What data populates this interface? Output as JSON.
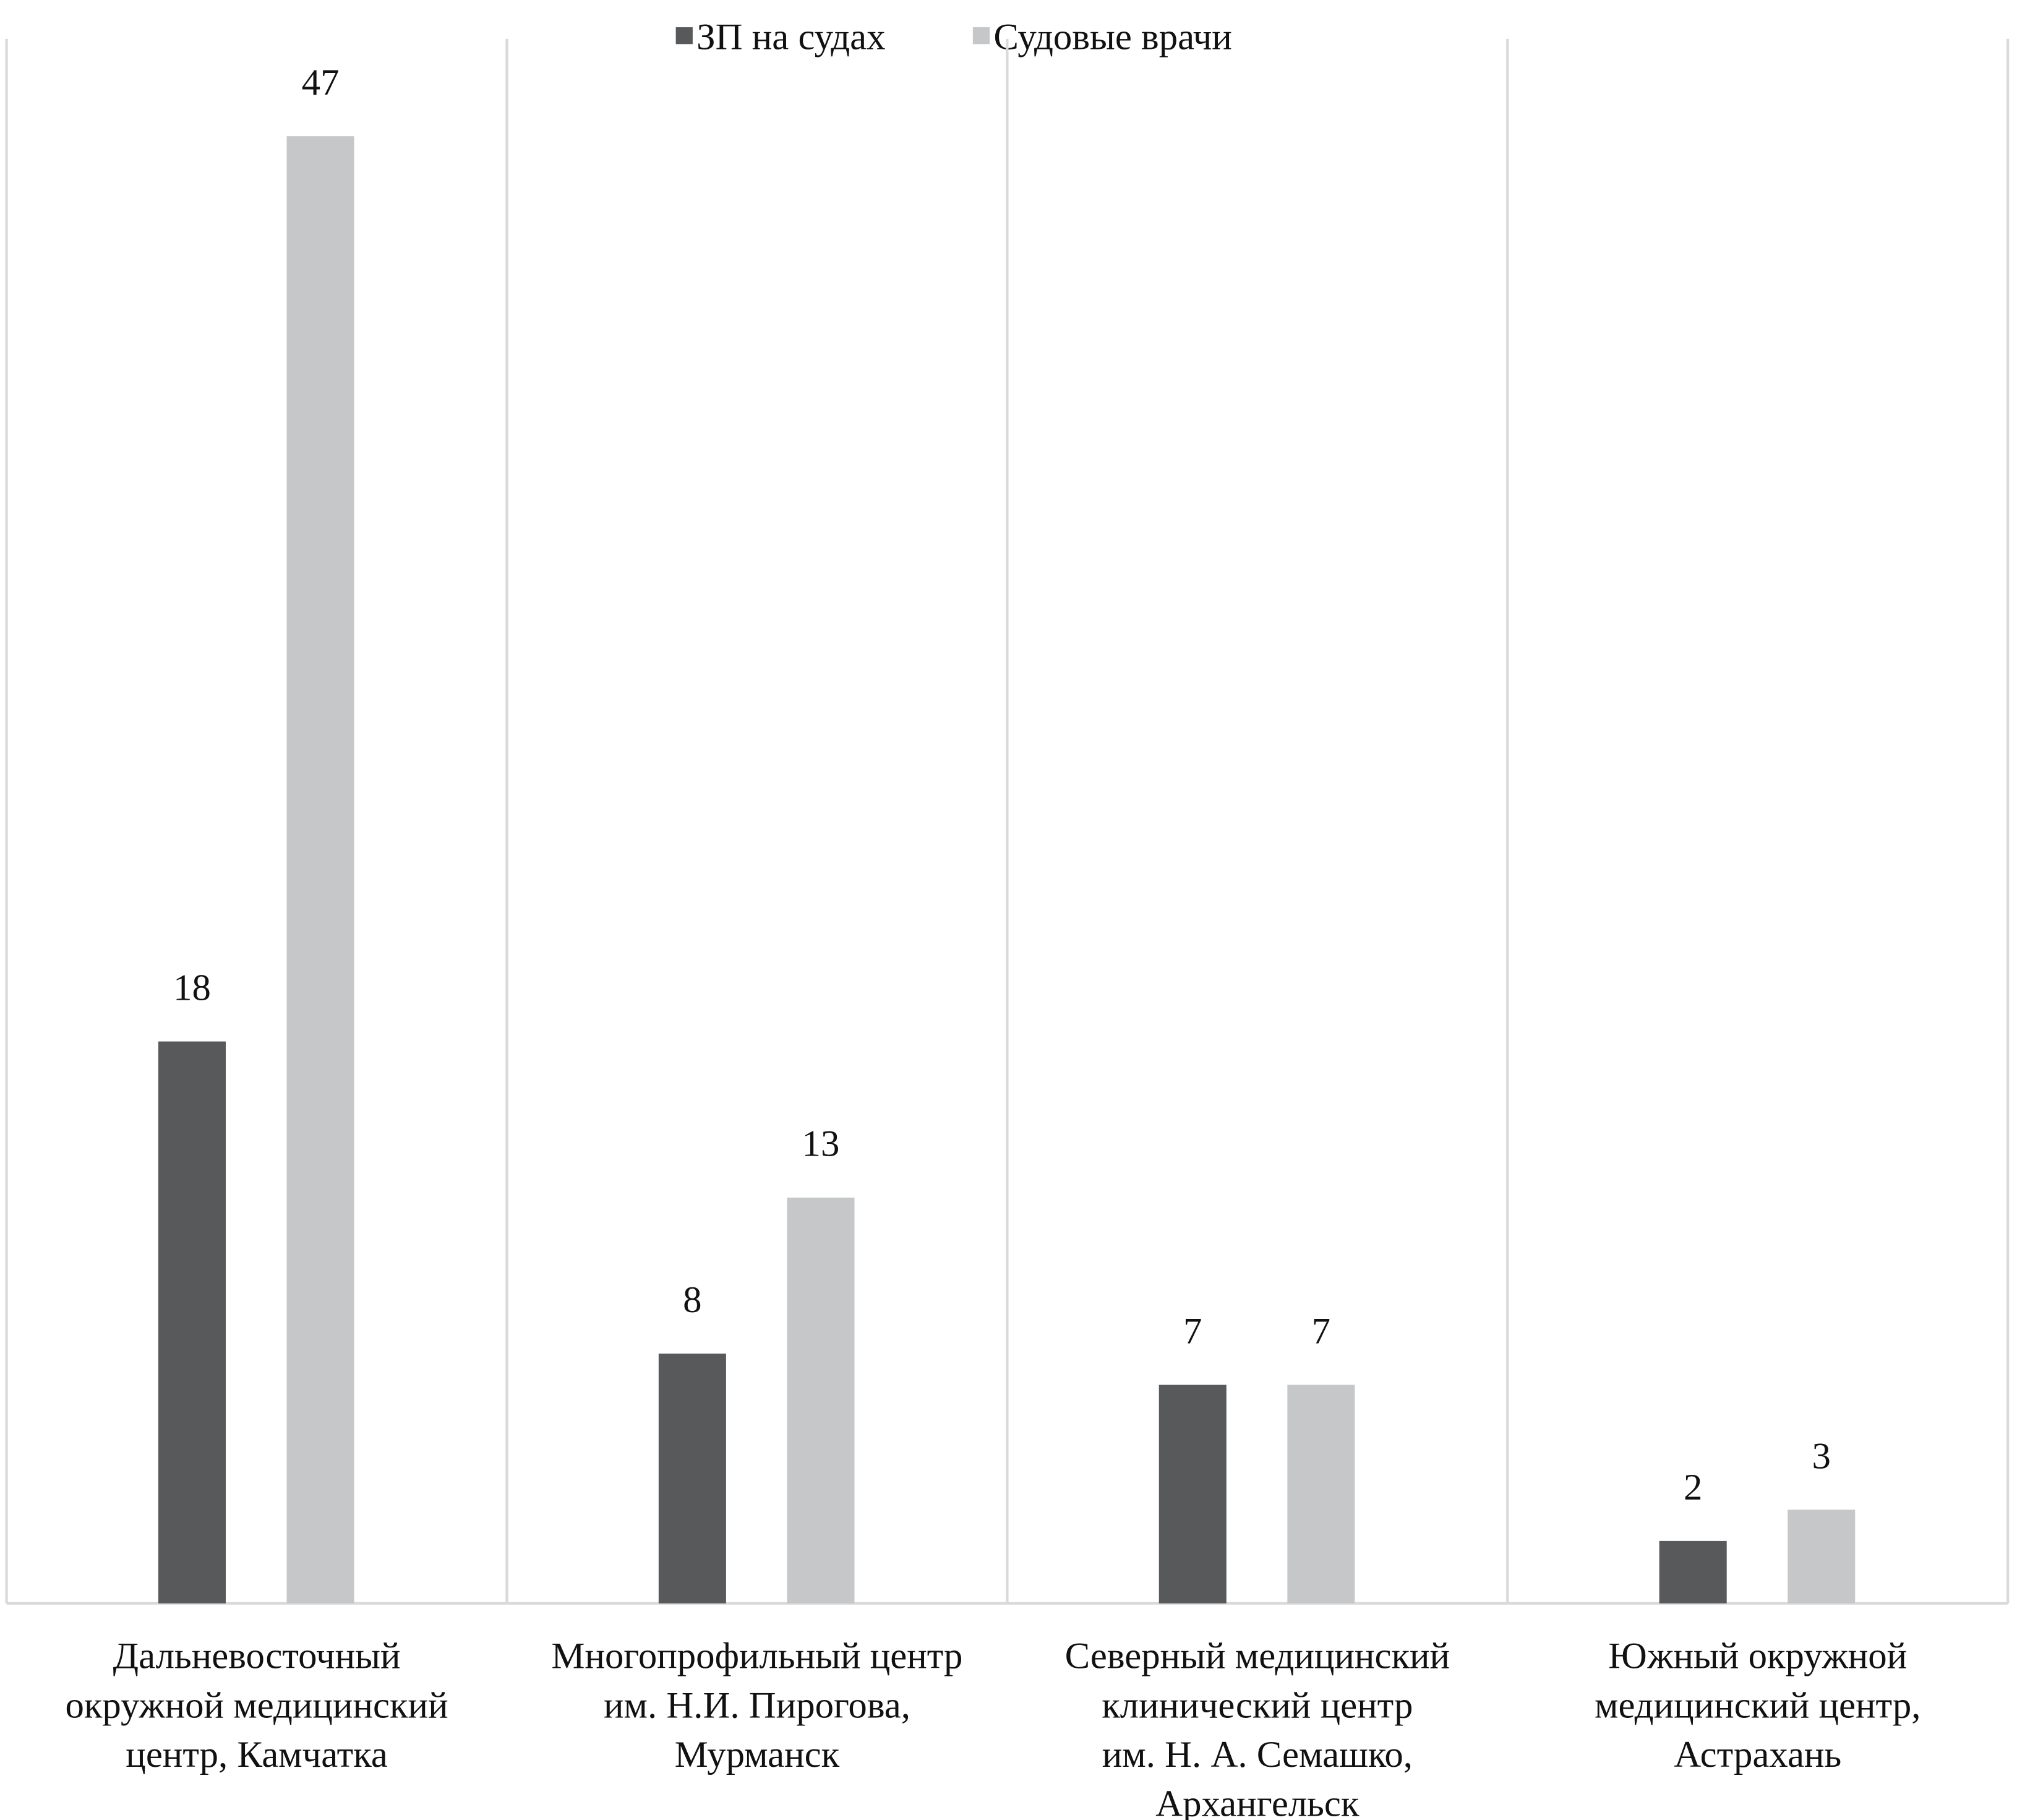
{
  "chart_data": {
    "type": "bar",
    "title": "",
    "xlabel": "",
    "ylabel": "",
    "ylim": [
      0,
      47
    ],
    "grid": false,
    "legend_position": "top-center",
    "categories": [
      [
        "Дальневосточный",
        "окружной медицинский",
        "центр, Камчатка"
      ],
      [
        "Многопрофильный центр",
        "им. Н.И. Пирогова,",
        "Мурманск"
      ],
      [
        "Северный медицинский",
        "клинический центр",
        "им. Н. А. Семашко,",
        "Архангельск"
      ],
      [
        "Южный окружной",
        "медицинский центр,",
        "Астрахань"
      ]
    ],
    "series": [
      {
        "name": "ЗП на судах",
        "color": "#58595b",
        "values": [
          18,
          8,
          7,
          2
        ]
      },
      {
        "name": "Судовые врачи",
        "color": "#c6c7c9",
        "values": [
          47,
          13,
          7,
          3
        ]
      }
    ]
  }
}
